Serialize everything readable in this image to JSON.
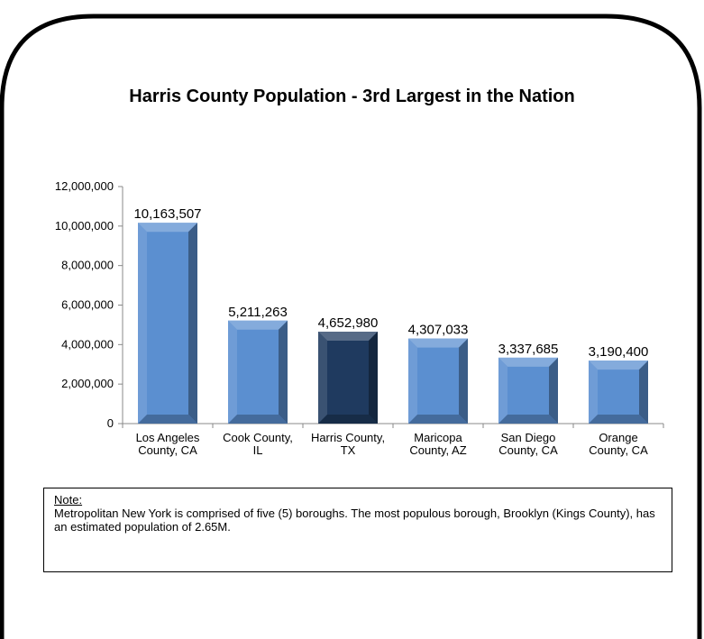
{
  "chart_data": {
    "type": "bar",
    "title": "Harris County Population - 3rd Largest in the Nation",
    "categories": [
      [
        "Los Angeles",
        "County, CA"
      ],
      [
        "Cook County,",
        "IL"
      ],
      [
        "Harris County,",
        "TX"
      ],
      [
        "Maricopa",
        "County, AZ"
      ],
      [
        "San Diego",
        "County, CA"
      ],
      [
        "Orange",
        "County, CA"
      ]
    ],
    "values": [
      10163507,
      5211263,
      4652980,
      4307033,
      3337685,
      3190400
    ],
    "value_labels": [
      "10,163,507",
      "5,211,263",
      "4,652,980",
      "4,307,033",
      "3,337,685",
      "3,190,400"
    ],
    "ylim": [
      0,
      12000000
    ],
    "yticks": [
      0,
      2000000,
      4000000,
      6000000,
      8000000,
      10000000,
      12000000
    ],
    "ytick_labels": [
      "0",
      "2,000,000",
      "4,000,000",
      "6,000,000",
      "8,000,000",
      "10,000,000",
      "12,000,000"
    ],
    "highlight_index": 2,
    "grid": false,
    "colors": {
      "bar": "#5B8FD0",
      "bar_highlight": "#1F3A5F"
    }
  },
  "note": {
    "label": "Note:",
    "text": "Metropolitan New York is comprised of five (5) boroughs. The most populous borough, Brooklyn (Kings County), has an estimated population of 2.65M."
  }
}
